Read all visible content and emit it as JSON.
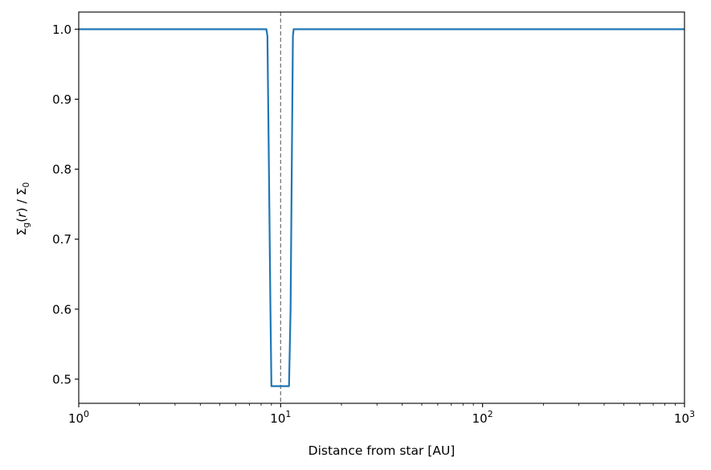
{
  "chart_data": {
    "type": "line",
    "title": "",
    "xlabel": "Distance from star [AU]",
    "ylabel": {
      "sigma1": "Σ",
      "sub1": "g",
      "mid": "(",
      "r": "r",
      "close": ") / ",
      "sigma2": "Σ",
      "sub2": "0"
    },
    "xscale": "log",
    "xlim": [
      1,
      1000
    ],
    "ylim": [
      0.4655,
      1.0245
    ],
    "x_ticks": [
      {
        "base": "10",
        "exp": "0",
        "value": 1
      },
      {
        "base": "10",
        "exp": "1",
        "value": 10
      },
      {
        "base": "10",
        "exp": "2",
        "value": 100
      },
      {
        "base": "10",
        "exp": "3",
        "value": 1000
      }
    ],
    "y_ticks": [
      {
        "label": "0.5",
        "value": 0.5
      },
      {
        "label": "0.6",
        "value": 0.6
      },
      {
        "label": "0.7",
        "value": 0.7
      },
      {
        "label": "0.8",
        "value": 0.8
      },
      {
        "label": "0.9",
        "value": 0.9
      },
      {
        "label": "1.0",
        "value": 1.0
      }
    ],
    "grid": false,
    "reference_line": {
      "x": 10,
      "style": "dashed",
      "color": "#777777"
    },
    "series": [
      {
        "color": "#1f77b4",
        "x": [
          1,
          8.5,
          8.6,
          8.75,
          8.9,
          9.0,
          10.0,
          11.0,
          11.2,
          11.35,
          11.5,
          11.6,
          1000
        ],
        "y": [
          1.0,
          1.0,
          0.99,
          0.8,
          0.6,
          0.49,
          0.49,
          0.49,
          0.6,
          0.8,
          0.99,
          1.0,
          1.0
        ]
      }
    ]
  }
}
